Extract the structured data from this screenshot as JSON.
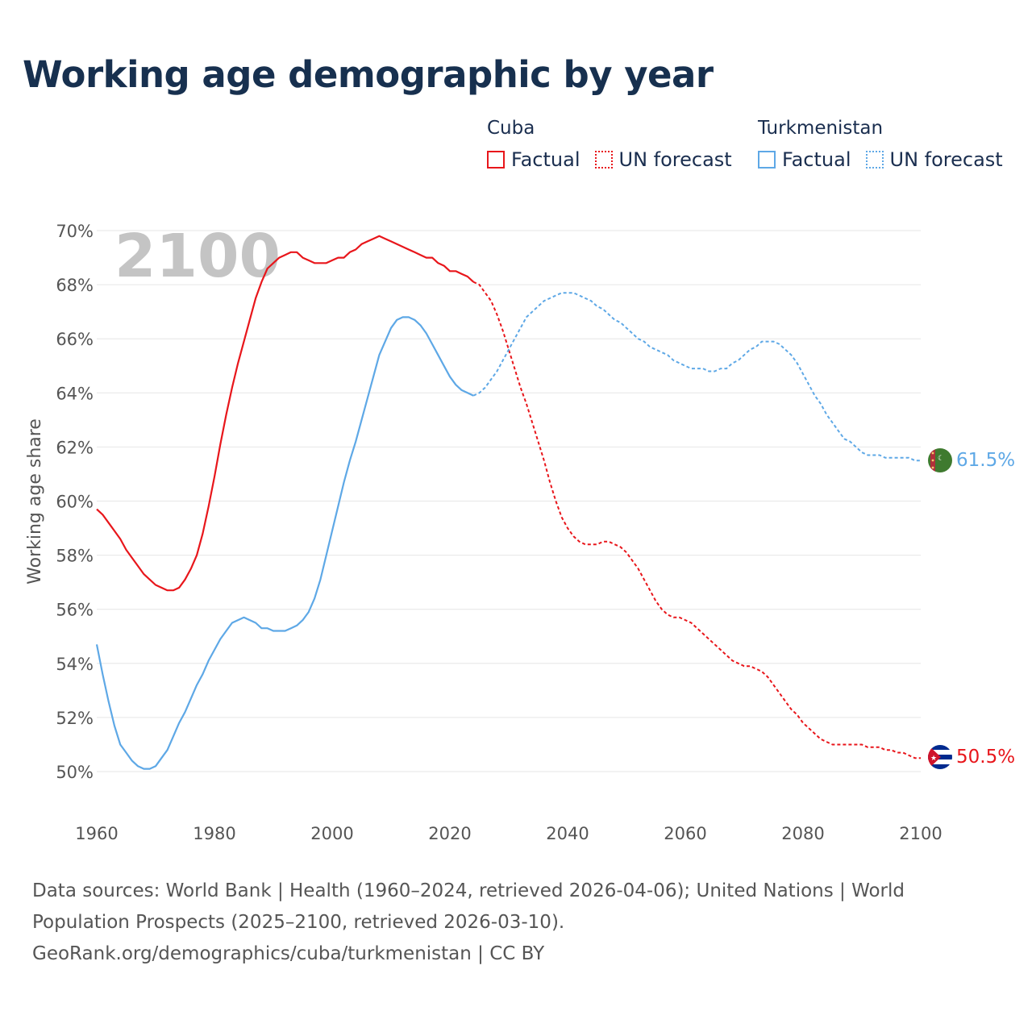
{
  "title": "Working age demographic by year",
  "legend": {
    "factual_label": "Factual",
    "forecast_label": "UN forecast"
  },
  "colors": {
    "cuba": "#e8161b",
    "turkmenistan": "#5ea8e6",
    "grid": "#e6e6e6",
    "text": "#555555"
  },
  "chart_data": {
    "type": "line",
    "title": "Working age demographic by year",
    "year_label": "2100",
    "xlabel": "",
    "ylabel": "Working age share",
    "xlim": [
      1960,
      2100
    ],
    "ylim": [
      50,
      70
    ],
    "x_ticks": [
      "1960",
      "1980",
      "2000",
      "2020",
      "2040",
      "2060",
      "2080",
      "2100"
    ],
    "y_ticks": [
      "50%",
      "52%",
      "54%",
      "56%",
      "58%",
      "60%",
      "62%",
      "64%",
      "66%",
      "68%",
      "70%"
    ],
    "series": [
      {
        "name": "Cuba",
        "key": "cuba",
        "end_label": "50.5%",
        "factual": [
          [
            1960,
            59.7
          ],
          [
            1961,
            59.5
          ],
          [
            1962,
            59.2
          ],
          [
            1963,
            58.9
          ],
          [
            1964,
            58.6
          ],
          [
            1965,
            58.2
          ],
          [
            1966,
            57.9
          ],
          [
            1967,
            57.6
          ],
          [
            1968,
            57.3
          ],
          [
            1969,
            57.1
          ],
          [
            1970,
            56.9
          ],
          [
            1971,
            56.8
          ],
          [
            1972,
            56.7
          ],
          [
            1973,
            56.7
          ],
          [
            1974,
            56.8
          ],
          [
            1975,
            57.1
          ],
          [
            1976,
            57.5
          ],
          [
            1977,
            58.0
          ],
          [
            1978,
            58.8
          ],
          [
            1979,
            59.8
          ],
          [
            1980,
            60.9
          ],
          [
            1981,
            62.1
          ],
          [
            1982,
            63.2
          ],
          [
            1983,
            64.2
          ],
          [
            1984,
            65.1
          ],
          [
            1985,
            65.9
          ],
          [
            1986,
            66.7
          ],
          [
            1987,
            67.5
          ],
          [
            1988,
            68.1
          ],
          [
            1989,
            68.6
          ],
          [
            1990,
            68.8
          ],
          [
            1991,
            69.0
          ],
          [
            1992,
            69.1
          ],
          [
            1993,
            69.2
          ],
          [
            1994,
            69.2
          ],
          [
            1995,
            69.0
          ],
          [
            1996,
            68.9
          ],
          [
            1997,
            68.8
          ],
          [
            1998,
            68.8
          ],
          [
            1999,
            68.8
          ],
          [
            2000,
            68.9
          ],
          [
            2001,
            69.0
          ],
          [
            2002,
            69.0
          ],
          [
            2003,
            69.2
          ],
          [
            2004,
            69.3
          ],
          [
            2005,
            69.5
          ],
          [
            2006,
            69.6
          ],
          [
            2007,
            69.7
          ],
          [
            2008,
            69.8
          ],
          [
            2009,
            69.7
          ],
          [
            2010,
            69.6
          ],
          [
            2011,
            69.5
          ],
          [
            2012,
            69.4
          ],
          [
            2013,
            69.3
          ],
          [
            2014,
            69.2
          ],
          [
            2015,
            69.1
          ],
          [
            2016,
            69.0
          ],
          [
            2017,
            69.0
          ],
          [
            2018,
            68.8
          ],
          [
            2019,
            68.7
          ],
          [
            2020,
            68.5
          ],
          [
            2021,
            68.5
          ],
          [
            2022,
            68.4
          ],
          [
            2023,
            68.3
          ],
          [
            2024,
            68.1
          ]
        ],
        "forecast": [
          [
            2024,
            68.1
          ],
          [
            2025,
            68.0
          ],
          [
            2026,
            67.7
          ],
          [
            2027,
            67.4
          ],
          [
            2028,
            66.9
          ],
          [
            2029,
            66.3
          ],
          [
            2030,
            65.6
          ],
          [
            2031,
            64.9
          ],
          [
            2032,
            64.2
          ],
          [
            2033,
            63.6
          ],
          [
            2034,
            62.9
          ],
          [
            2035,
            62.2
          ],
          [
            2036,
            61.5
          ],
          [
            2037,
            60.7
          ],
          [
            2038,
            60.0
          ],
          [
            2039,
            59.4
          ],
          [
            2040,
            59.0
          ],
          [
            2041,
            58.7
          ],
          [
            2042,
            58.5
          ],
          [
            2043,
            58.4
          ],
          [
            2044,
            58.4
          ],
          [
            2045,
            58.4
          ],
          [
            2046,
            58.5
          ],
          [
            2047,
            58.5
          ],
          [
            2048,
            58.4
          ],
          [
            2049,
            58.3
          ],
          [
            2050,
            58.1
          ],
          [
            2051,
            57.8
          ],
          [
            2052,
            57.5
          ],
          [
            2053,
            57.1
          ],
          [
            2054,
            56.7
          ],
          [
            2055,
            56.3
          ],
          [
            2056,
            56.0
          ],
          [
            2057,
            55.8
          ],
          [
            2058,
            55.7
          ],
          [
            2059,
            55.7
          ],
          [
            2060,
            55.6
          ],
          [
            2061,
            55.5
          ],
          [
            2062,
            55.3
          ],
          [
            2063,
            55.1
          ],
          [
            2064,
            54.9
          ],
          [
            2065,
            54.7
          ],
          [
            2066,
            54.5
          ],
          [
            2067,
            54.3
          ],
          [
            2068,
            54.1
          ],
          [
            2069,
            54.0
          ],
          [
            2070,
            53.9
          ],
          [
            2071,
            53.9
          ],
          [
            2072,
            53.8
          ],
          [
            2073,
            53.7
          ],
          [
            2074,
            53.5
          ],
          [
            2075,
            53.2
          ],
          [
            2076,
            52.9
          ],
          [
            2077,
            52.6
          ],
          [
            2078,
            52.3
          ],
          [
            2079,
            52.1
          ],
          [
            2080,
            51.8
          ],
          [
            2081,
            51.6
          ],
          [
            2082,
            51.4
          ],
          [
            2083,
            51.2
          ],
          [
            2084,
            51.1
          ],
          [
            2085,
            51.0
          ],
          [
            2086,
            51.0
          ],
          [
            2087,
            51.0
          ],
          [
            2088,
            51.0
          ],
          [
            2089,
            51.0
          ],
          [
            2090,
            51.0
          ],
          [
            2091,
            50.9
          ],
          [
            2092,
            50.9
          ],
          [
            2093,
            50.9
          ],
          [
            2094,
            50.8
          ],
          [
            2095,
            50.8
          ],
          [
            2096,
            50.7
          ],
          [
            2097,
            50.7
          ],
          [
            2098,
            50.6
          ],
          [
            2099,
            50.5
          ],
          [
            2100,
            50.5
          ]
        ]
      },
      {
        "name": "Turkmenistan",
        "key": "turkmenistan",
        "end_label": "61.5%",
        "factual": [
          [
            1960,
            54.7
          ],
          [
            1961,
            53.6
          ],
          [
            1962,
            52.6
          ],
          [
            1963,
            51.7
          ],
          [
            1964,
            51.0
          ],
          [
            1965,
            50.7
          ],
          [
            1966,
            50.4
          ],
          [
            1967,
            50.2
          ],
          [
            1968,
            50.1
          ],
          [
            1969,
            50.1
          ],
          [
            1970,
            50.2
          ],
          [
            1971,
            50.5
          ],
          [
            1972,
            50.8
          ],
          [
            1973,
            51.3
          ],
          [
            1974,
            51.8
          ],
          [
            1975,
            52.2
          ],
          [
            1976,
            52.7
          ],
          [
            1977,
            53.2
          ],
          [
            1978,
            53.6
          ],
          [
            1979,
            54.1
          ],
          [
            1980,
            54.5
          ],
          [
            1981,
            54.9
          ],
          [
            1982,
            55.2
          ],
          [
            1983,
            55.5
          ],
          [
            1984,
            55.6
          ],
          [
            1985,
            55.7
          ],
          [
            1986,
            55.6
          ],
          [
            1987,
            55.5
          ],
          [
            1988,
            55.3
          ],
          [
            1989,
            55.3
          ],
          [
            1990,
            55.2
          ],
          [
            1991,
            55.2
          ],
          [
            1992,
            55.2
          ],
          [
            1993,
            55.3
          ],
          [
            1994,
            55.4
          ],
          [
            1995,
            55.6
          ],
          [
            1996,
            55.9
          ],
          [
            1997,
            56.4
          ],
          [
            1998,
            57.1
          ],
          [
            1999,
            58.0
          ],
          [
            2000,
            58.9
          ],
          [
            2001,
            59.8
          ],
          [
            2002,
            60.7
          ],
          [
            2003,
            61.5
          ],
          [
            2004,
            62.2
          ],
          [
            2005,
            63.0
          ],
          [
            2006,
            63.8
          ],
          [
            2007,
            64.6
          ],
          [
            2008,
            65.4
          ],
          [
            2009,
            65.9
          ],
          [
            2010,
            66.4
          ],
          [
            2011,
            66.7
          ],
          [
            2012,
            66.8
          ],
          [
            2013,
            66.8
          ],
          [
            2014,
            66.7
          ],
          [
            2015,
            66.5
          ],
          [
            2016,
            66.2
          ],
          [
            2017,
            65.8
          ],
          [
            2018,
            65.4
          ],
          [
            2019,
            65.0
          ],
          [
            2020,
            64.6
          ],
          [
            2021,
            64.3
          ],
          [
            2022,
            64.1
          ],
          [
            2023,
            64.0
          ],
          [
            2024,
            63.9
          ]
        ],
        "forecast": [
          [
            2024,
            63.9
          ],
          [
            2025,
            64.0
          ],
          [
            2026,
            64.2
          ],
          [
            2027,
            64.5
          ],
          [
            2028,
            64.8
          ],
          [
            2029,
            65.2
          ],
          [
            2030,
            65.6
          ],
          [
            2031,
            66.0
          ],
          [
            2032,
            66.4
          ],
          [
            2033,
            66.8
          ],
          [
            2034,
            67.0
          ],
          [
            2035,
            67.2
          ],
          [
            2036,
            67.4
          ],
          [
            2037,
            67.5
          ],
          [
            2038,
            67.6
          ],
          [
            2039,
            67.7
          ],
          [
            2040,
            67.7
          ],
          [
            2041,
            67.7
          ],
          [
            2042,
            67.6
          ],
          [
            2043,
            67.5
          ],
          [
            2044,
            67.4
          ],
          [
            2045,
            67.2
          ],
          [
            2046,
            67.1
          ],
          [
            2047,
            66.9
          ],
          [
            2048,
            66.7
          ],
          [
            2049,
            66.6
          ],
          [
            2050,
            66.4
          ],
          [
            2051,
            66.2
          ],
          [
            2052,
            66.0
          ],
          [
            2053,
            65.9
          ],
          [
            2054,
            65.7
          ],
          [
            2055,
            65.6
          ],
          [
            2056,
            65.5
          ],
          [
            2057,
            65.4
          ],
          [
            2058,
            65.2
          ],
          [
            2059,
            65.1
          ],
          [
            2060,
            65.0
          ],
          [
            2061,
            64.9
          ],
          [
            2062,
            64.9
          ],
          [
            2063,
            64.9
          ],
          [
            2064,
            64.8
          ],
          [
            2065,
            64.8
          ],
          [
            2066,
            64.9
          ],
          [
            2067,
            64.9
          ],
          [
            2068,
            65.1
          ],
          [
            2069,
            65.2
          ],
          [
            2070,
            65.4
          ],
          [
            2071,
            65.6
          ],
          [
            2072,
            65.7
          ],
          [
            2073,
            65.9
          ],
          [
            2074,
            65.9
          ],
          [
            2075,
            65.9
          ],
          [
            2076,
            65.8
          ],
          [
            2077,
            65.6
          ],
          [
            2078,
            65.4
          ],
          [
            2079,
            65.1
          ],
          [
            2080,
            64.7
          ],
          [
            2081,
            64.3
          ],
          [
            2082,
            63.9
          ],
          [
            2083,
            63.6
          ],
          [
            2084,
            63.2
          ],
          [
            2085,
            62.9
          ],
          [
            2086,
            62.6
          ],
          [
            2087,
            62.3
          ],
          [
            2088,
            62.2
          ],
          [
            2089,
            62.0
          ],
          [
            2090,
            61.8
          ],
          [
            2091,
            61.7
          ],
          [
            2092,
            61.7
          ],
          [
            2093,
            61.7
          ],
          [
            2094,
            61.6
          ],
          [
            2095,
            61.6
          ],
          [
            2096,
            61.6
          ],
          [
            2097,
            61.6
          ],
          [
            2098,
            61.6
          ],
          [
            2099,
            61.5
          ],
          [
            2100,
            61.5
          ]
        ]
      }
    ]
  },
  "sources": {
    "line1": "Data sources: World Bank | Health (1960–2024, retrieved 2026-04-06); United Nations | World",
    "line2": "Population Prospects (2025–2100, retrieved 2026-03-10).",
    "line3": "GeoRank.org/demographics/cuba/turkmenistan | CC BY"
  }
}
